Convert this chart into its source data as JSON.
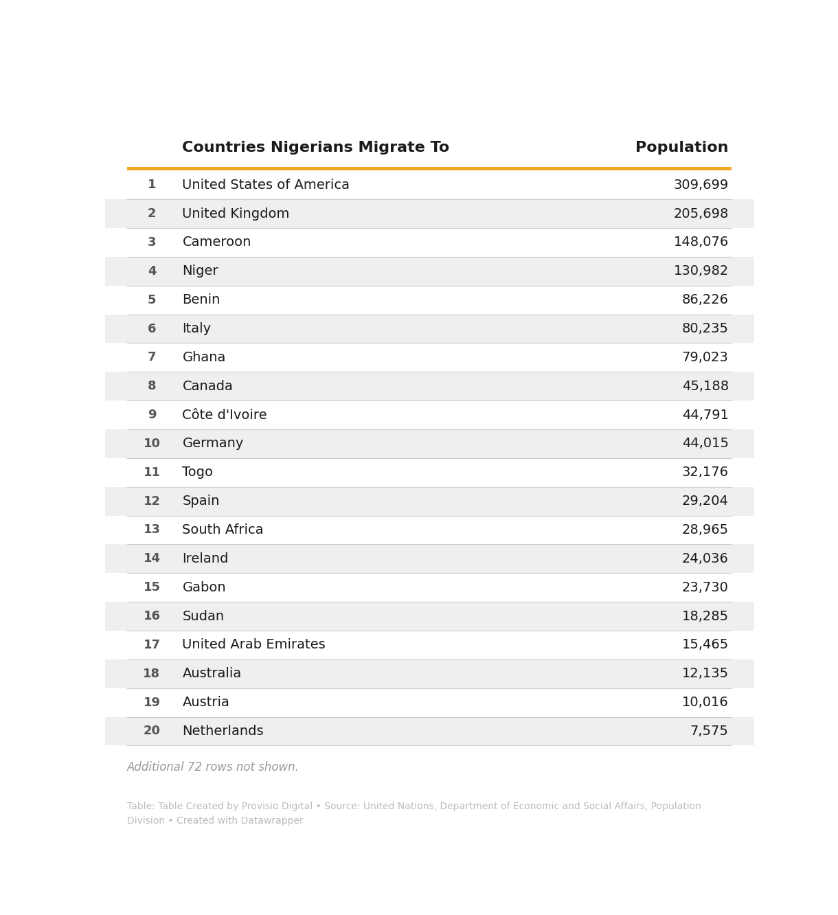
{
  "header_col1": "Countries Nigerians Migrate To",
  "header_col2": "Population",
  "rows": [
    {
      "rank": "1",
      "country": "United States of America",
      "population": "309,699"
    },
    {
      "rank": "2",
      "country": "United Kingdom",
      "population": "205,698"
    },
    {
      "rank": "3",
      "country": "Cameroon",
      "population": "148,076"
    },
    {
      "rank": "4",
      "country": "Niger",
      "population": "130,982"
    },
    {
      "rank": "5",
      "country": "Benin",
      "population": "86,226"
    },
    {
      "rank": "6",
      "country": "Italy",
      "population": "80,235"
    },
    {
      "rank": "7",
      "country": "Ghana",
      "population": "79,023"
    },
    {
      "rank": "8",
      "country": "Canada",
      "population": "45,188"
    },
    {
      "rank": "9",
      "country": "Côte d'Ivoire",
      "population": "44,791"
    },
    {
      "rank": "10",
      "country": "Germany",
      "population": "44,015"
    },
    {
      "rank": "11",
      "country": "Togo",
      "population": "32,176"
    },
    {
      "rank": "12",
      "country": "Spain",
      "population": "29,204"
    },
    {
      "rank": "13",
      "country": "South Africa",
      "population": "28,965"
    },
    {
      "rank": "14",
      "country": "Ireland",
      "population": "24,036"
    },
    {
      "rank": "15",
      "country": "Gabon",
      "population": "23,730"
    },
    {
      "rank": "16",
      "country": "Sudan",
      "population": "18,285"
    },
    {
      "rank": "17",
      "country": "United Arab Emirates",
      "population": "15,465"
    },
    {
      "rank": "18",
      "country": "Australia",
      "population": "12,135"
    },
    {
      "rank": "19",
      "country": "Austria",
      "population": "10,016"
    },
    {
      "rank": "20",
      "country": "Netherlands",
      "population": "7,575"
    }
  ],
  "footer_note": "Additional 72 rows not shown.",
  "source_text": "Table: Table Created by Provisio Digital • Source: United Nations, Department of Economic and Social Affairs, Population\nDivision • Created with Datawrapper",
  "orange_line_color": "#F5A623",
  "header_bg_color": "#ffffff",
  "odd_row_bg": "#ffffff",
  "even_row_bg": "#efefef",
  "header_text_color": "#1a1a1a",
  "rank_text_color": "#555555",
  "country_text_color": "#1a1a1a",
  "population_text_color": "#1a1a1a",
  "footer_text_color": "#999999",
  "source_text_color": "#bbbbbb",
  "separator_color": "#cccccc",
  "background_color": "#ffffff"
}
